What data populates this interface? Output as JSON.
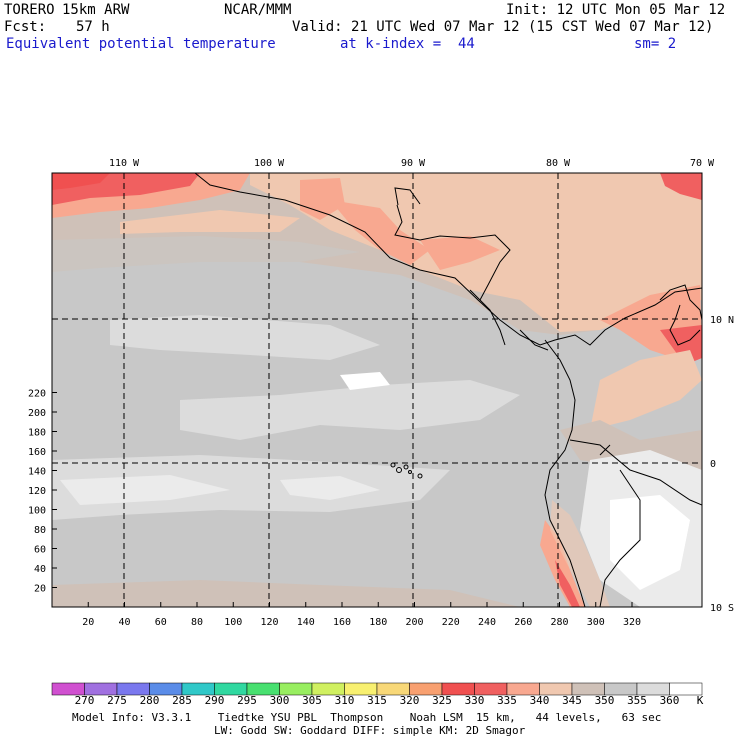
{
  "header": {
    "model": "TORERO",
    "resolution": "15km ARW",
    "org": "NCAR/MMM",
    "init": "Init: 12 UTC Mon 05 Mar 12",
    "fcst_label": "Fcst:",
    "fcst_value": "57 h",
    "valid": "Valid: 21 UTC Wed 07 Mar 12 (15 CST Wed 07 Mar 12)",
    "field": "Equivalent potential temperature",
    "level": "at k-index =  44",
    "smoothing": "sm= 2"
  },
  "map": {
    "lon_labels": [
      "110 W",
      "100 W",
      "90 W",
      "80 W",
      "70 W"
    ],
    "lat_labels": [
      "10 N",
      "0",
      "10 S"
    ],
    "y_ticks": [
      "220",
      "200",
      "180",
      "160",
      "140",
      "120",
      "100",
      "80",
      "60",
      "40",
      "20"
    ],
    "x_ticks": [
      "20",
      "40",
      "60",
      "80",
      "100",
      "120",
      "140",
      "160",
      "180",
      "200",
      "220",
      "240",
      "260",
      "280",
      "300",
      "320"
    ]
  },
  "colorbar": {
    "unit": "K",
    "levels": [
      "270",
      "275",
      "280",
      "285",
      "290",
      "295",
      "300",
      "305",
      "310",
      "315",
      "320",
      "325",
      "330",
      "335",
      "340",
      "345",
      "350",
      "355",
      "360"
    ],
    "colors": [
      "#d050d0",
      "#a070e0",
      "#7a78ee",
      "#5a8ce8",
      "#30c8c8",
      "#30d8a0",
      "#48e070",
      "#98ee60",
      "#d0f060",
      "#f8f070",
      "#f8d878",
      "#f8a070",
      "#f05050",
      "#f06060",
      "#f8a890",
      "#f0c8b0",
      "#cfc1b8",
      "#c8c8c8",
      "#dcdcdc",
      "#ffffff"
    ]
  },
  "footer": {
    "line1": "Model Info: V3.3.1    Tiedtke YSU PBL  Thompson    Noah LSM  15 km,   44 levels,   63 sec",
    "line2": "LW: Godd SW: Goddard DIFF: simple KM: 2D Smagor"
  }
}
